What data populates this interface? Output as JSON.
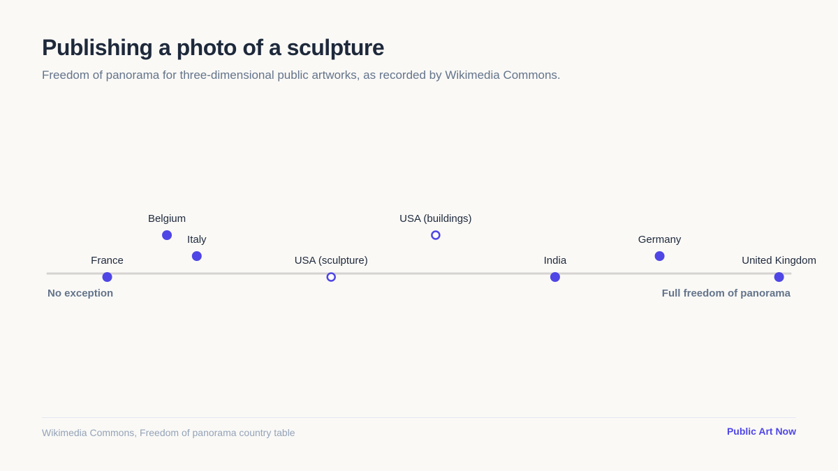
{
  "header": {
    "title": "Publishing a photo of a sculpture",
    "subtitle": "Freedom of panorama for three-dimensional public artworks, as recorded by Wikimedia Commons."
  },
  "footer": {
    "source": "Wikimedia Commons, Freedom of panorama country table",
    "brand": "Public Art Now"
  },
  "colors": {
    "accent": "#4f46e5",
    "axis": "#d6d3d1",
    "label": "#1e293b",
    "end_label": "#64748b"
  },
  "chart_data": {
    "type": "scatter",
    "axis": {
      "left_label": "No exception",
      "right_label": "Full freedom of panorama",
      "range": [
        0,
        1
      ]
    },
    "points": [
      {
        "label": "France",
        "value": 0.08,
        "tier": 0,
        "style": "filled"
      },
      {
        "label": "Belgium",
        "value": 0.16,
        "tier": 2,
        "style": "filled"
      },
      {
        "label": "Italy",
        "value": 0.2,
        "tier": 1,
        "style": "filled"
      },
      {
        "label": "USA (sculpture)",
        "value": 0.38,
        "tier": 0,
        "style": "hollow"
      },
      {
        "label": "USA (buildings)",
        "value": 0.52,
        "tier": 2,
        "style": "hollow"
      },
      {
        "label": "India",
        "value": 0.68,
        "tier": 0,
        "style": "filled"
      },
      {
        "label": "Germany",
        "value": 0.82,
        "tier": 1,
        "style": "filled"
      },
      {
        "label": "United Kingdom",
        "value": 0.98,
        "tier": 0,
        "style": "filled"
      }
    ]
  }
}
